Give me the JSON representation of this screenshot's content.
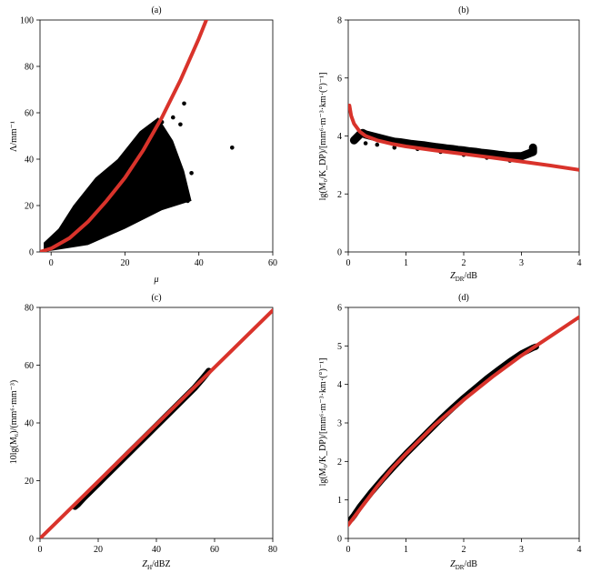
{
  "figure": {
    "colors": {
      "points": "#000000",
      "fit": "#d9332b",
      "axis": "#000000"
    }
  },
  "chart_data": [
    {
      "type": "scatter",
      "title": "(a)",
      "xlabel": "μ",
      "ylabel": "Λ/mm⁻¹",
      "xlim": [
        -3,
        60
      ],
      "ylim": [
        0,
        100
      ],
      "xticks": [
        "0",
        "20",
        "40",
        "60"
      ],
      "yticks": [
        "0",
        "20",
        "40",
        "60",
        "80",
        "100"
      ],
      "grid": false,
      "series": [
        {
          "kind": "scatter",
          "points": [
            [
              -1,
              1
            ],
            [
              0,
              2
            ],
            [
              1,
              3
            ],
            [
              2,
              4
            ],
            [
              3,
              5
            ],
            [
              4,
              7
            ],
            [
              5,
              9
            ],
            [
              6,
              11
            ],
            [
              7,
              13
            ],
            [
              8,
              15
            ],
            [
              9,
              18
            ],
            [
              10,
              20
            ],
            [
              11,
              22
            ],
            [
              12,
              24
            ],
            [
              13,
              26
            ],
            [
              14,
              28
            ],
            [
              15,
              30
            ],
            [
              16,
              32
            ],
            [
              17,
              34
            ],
            [
              18,
              35
            ],
            [
              20,
              38
            ],
            [
              22,
              42
            ],
            [
              24,
              45
            ],
            [
              26,
              48
            ],
            [
              28,
              52
            ],
            [
              30,
              56
            ],
            [
              33,
              58
            ],
            [
              35,
              55
            ],
            [
              36,
              64
            ],
            [
              38,
              34
            ],
            [
              37,
              22
            ],
            [
              49,
              45
            ],
            [
              8,
              6
            ],
            [
              12,
              10
            ],
            [
              16,
              14
            ],
            [
              20,
              16
            ],
            [
              5,
              3
            ],
            [
              10,
              8
            ],
            [
              14,
              12
            ],
            [
              18,
              20
            ],
            [
              22,
              24
            ],
            [
              25,
              28
            ],
            [
              28,
              30
            ],
            [
              30,
              36
            ],
            [
              26,
              40
            ],
            [
              24,
              30
            ],
            [
              21,
              28
            ],
            [
              19,
              24
            ],
            [
              17,
              18
            ],
            [
              15,
              16
            ],
            [
              13,
              14
            ],
            [
              11,
              12
            ],
            [
              9,
              10
            ],
            [
              7,
              8
            ],
            [
              6,
              5
            ],
            [
              4,
              3
            ]
          ]
        },
        {
          "kind": "line",
          "points": [
            [
              -3,
              0
            ],
            [
              0,
              1.5
            ],
            [
              5,
              6
            ],
            [
              10,
              13
            ],
            [
              15,
              22
            ],
            [
              20,
              32
            ],
            [
              25,
              44
            ],
            [
              30,
              58
            ],
            [
              35,
              74
            ],
            [
              40,
              92
            ],
            [
              42,
              100
            ]
          ]
        }
      ]
    },
    {
      "type": "scatter",
      "title": "(b)",
      "xlabel": "Z_DR/dB",
      "ylabel": "lg(M₀/K_DP)/[mm⁶·m⁻³·km·(°)⁻¹]",
      "xlim": [
        0,
        4
      ],
      "ylim": [
        0,
        8
      ],
      "xticks": [
        "0",
        "1",
        "2",
        "3",
        "4"
      ],
      "yticks": [
        "0",
        "2",
        "4",
        "6",
        "8"
      ],
      "grid": false,
      "series": [
        {
          "kind": "scatter",
          "points": [
            [
              0.1,
              3.85
            ],
            [
              0.15,
              3.95
            ],
            [
              0.2,
              4.05
            ],
            [
              0.25,
              4.1
            ],
            [
              0.3,
              4.05
            ],
            [
              0.4,
              4.0
            ],
            [
              0.5,
              3.95
            ],
            [
              0.6,
              3.9
            ],
            [
              0.7,
              3.85
            ],
            [
              0.8,
              3.8
            ],
            [
              0.9,
              3.78
            ],
            [
              1.0,
              3.75
            ],
            [
              1.1,
              3.72
            ],
            [
              1.2,
              3.7
            ],
            [
              1.3,
              3.68
            ],
            [
              1.4,
              3.65
            ],
            [
              1.5,
              3.62
            ],
            [
              1.6,
              3.6
            ],
            [
              1.7,
              3.57
            ],
            [
              1.8,
              3.55
            ],
            [
              1.9,
              3.52
            ],
            [
              2.0,
              3.5
            ],
            [
              2.1,
              3.47
            ],
            [
              2.2,
              3.45
            ],
            [
              2.3,
              3.42
            ],
            [
              2.4,
              3.4
            ],
            [
              2.5,
              3.38
            ],
            [
              2.6,
              3.35
            ],
            [
              2.7,
              3.33
            ],
            [
              2.8,
              3.3
            ],
            [
              2.9,
              3.3
            ],
            [
              3.0,
              3.3
            ],
            [
              3.2,
              3.45
            ],
            [
              3.2,
              3.6
            ],
            [
              0.3,
              3.75
            ],
            [
              0.5,
              3.7
            ],
            [
              0.8,
              3.6
            ],
            [
              1.2,
              3.55
            ],
            [
              1.6,
              3.45
            ],
            [
              2.0,
              3.35
            ],
            [
              2.4,
              3.25
            ],
            [
              2.8,
              3.15
            ]
          ]
        },
        {
          "kind": "line",
          "points": [
            [
              0.02,
              5.05
            ],
            [
              0.05,
              4.7
            ],
            [
              0.1,
              4.42
            ],
            [
              0.2,
              4.15
            ],
            [
              0.3,
              4.0
            ],
            [
              0.5,
              3.85
            ],
            [
              0.75,
              3.73
            ],
            [
              1.0,
              3.64
            ],
            [
              1.5,
              3.5
            ],
            [
              2.0,
              3.38
            ],
            [
              2.5,
              3.25
            ],
            [
              3.0,
              3.12
            ],
            [
              3.5,
              2.98
            ],
            [
              4.0,
              2.83
            ]
          ]
        }
      ]
    },
    {
      "type": "line",
      "title": "(c)",
      "xlabel": "Z_H/dBZ",
      "ylabel": "10lg(M₆)/(mm⁶·mm⁻³)",
      "xlim": [
        0,
        80
      ],
      "ylim": [
        0,
        80
      ],
      "xticks": [
        "0",
        "20",
        "40",
        "60",
        "80"
      ],
      "yticks": [
        "0",
        "20",
        "40",
        "60",
        "80"
      ],
      "grid": false,
      "series": [
        {
          "kind": "scatter",
          "points": [
            [
              12,
              11
            ],
            [
              13,
              11.8
            ],
            [
              15,
              14
            ],
            [
              18,
              17
            ],
            [
              20,
              19
            ],
            [
              22,
              21
            ],
            [
              25,
              24
            ],
            [
              28,
              27
            ],
            [
              30,
              29
            ],
            [
              33,
              32
            ],
            [
              36,
              35
            ],
            [
              40,
              39
            ],
            [
              43,
              42
            ],
            [
              46,
              45
            ],
            [
              50,
              49
            ],
            [
              53,
              52
            ],
            [
              56,
              55.5
            ],
            [
              58,
              58
            ]
          ]
        },
        {
          "kind": "line",
          "points": [
            [
              0,
              0
            ],
            [
              80,
              79
            ]
          ]
        }
      ]
    },
    {
      "type": "line",
      "title": "(d)",
      "xlabel": "Z_DR/dB",
      "ylabel": "lg(M₀/K_DP)/[mm⁶·m⁻³·km·(°)⁻¹]",
      "xlim": [
        0,
        4
      ],
      "ylim": [
        0,
        6
      ],
      "xticks": [
        "0",
        "1",
        "2",
        "3",
        "4"
      ],
      "yticks": [
        "0",
        "1",
        "2",
        "3",
        "4",
        "5",
        "6"
      ],
      "grid": false,
      "series": [
        {
          "kind": "scatter",
          "points": [
            [
              0.05,
              0.5
            ],
            [
              0.1,
              0.6
            ],
            [
              0.2,
              0.82
            ],
            [
              0.4,
              1.2
            ],
            [
              0.6,
              1.55
            ],
            [
              0.8,
              1.88
            ],
            [
              1.0,
              2.2
            ],
            [
              1.2,
              2.5
            ],
            [
              1.4,
              2.8
            ],
            [
              1.6,
              3.1
            ],
            [
              1.8,
              3.38
            ],
            [
              2.0,
              3.65
            ],
            [
              2.2,
              3.9
            ],
            [
              2.4,
              4.15
            ],
            [
              2.6,
              4.38
            ],
            [
              2.8,
              4.6
            ],
            [
              3.0,
              4.8
            ],
            [
              3.2,
              4.95
            ],
            [
              3.25,
              4.98
            ]
          ]
        },
        {
          "kind": "line",
          "points": [
            [
              0,
              0.35
            ],
            [
              0.25,
              0.85
            ],
            [
              0.5,
              1.35
            ],
            [
              0.75,
              1.8
            ],
            [
              1.0,
              2.2
            ],
            [
              1.5,
              2.95
            ],
            [
              2.0,
              3.6
            ],
            [
              2.5,
              4.2
            ],
            [
              3.0,
              4.75
            ],
            [
              3.5,
              5.25
            ],
            [
              4.0,
              5.75
            ]
          ]
        }
      ]
    }
  ]
}
